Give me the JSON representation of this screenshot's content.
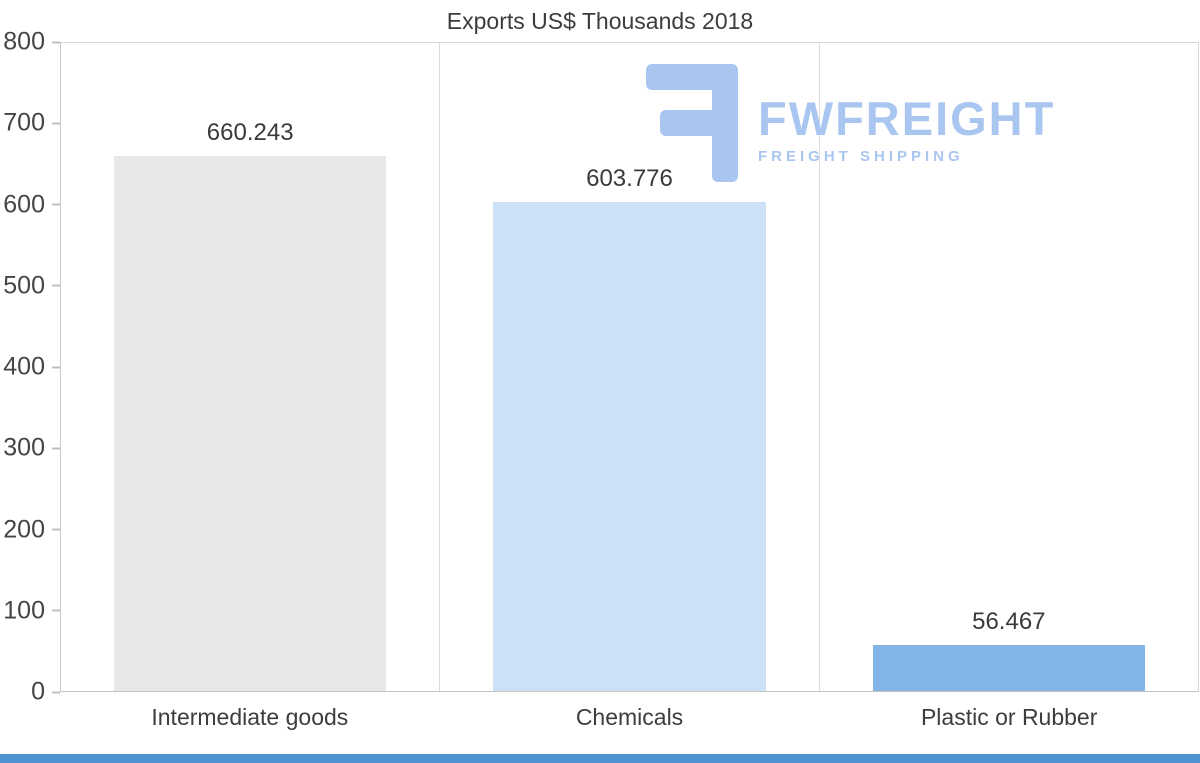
{
  "chart_data": {
    "type": "bar",
    "title": "Exports US$ Thousands 2018",
    "categories": [
      "Intermediate goods",
      "Chemicals",
      "Plastic or Rubber"
    ],
    "values": [
      660.243,
      603.776,
      56.467
    ],
    "value_labels": [
      "660.243",
      "603.776",
      "56.467"
    ],
    "bar_colors": [
      "#e7e7e7",
      "#cde1f6",
      "#83b4e6"
    ],
    "ylim": [
      0,
      800
    ],
    "yticks": [
      0,
      100,
      200,
      300,
      400,
      500,
      600,
      700,
      800
    ],
    "xlabel": "",
    "ylabel": "",
    "grid": "vertical category separators and plot border only",
    "legend": "none"
  },
  "watermark": {
    "brand": "FWFREIGHT",
    "tagline": "FREIGHT SHIPPING",
    "color": "#a9c6f1"
  },
  "footer": {
    "accent_color": "#4f92d1"
  }
}
